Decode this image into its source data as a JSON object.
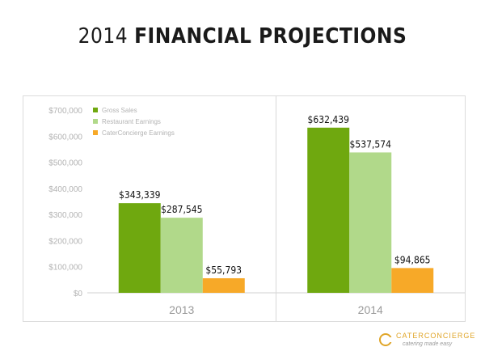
{
  "slide": {
    "title_light": "2014",
    "title_bold": "FINANCIAL PROJECTIONS"
  },
  "brand": {
    "name": "CATERCONCIERGE",
    "tagline": "catering made easy",
    "color": "#e0a528"
  },
  "chart_data": {
    "type": "bar",
    "categories": [
      "2013",
      "2014"
    ],
    "series": [
      {
        "name": "Gross Sales",
        "color": "#6fa80f",
        "values": [
          343339,
          632439
        ],
        "labels": [
          "$343,339",
          "$632,439"
        ]
      },
      {
        "name": "Restaurant Earnings",
        "color": "#b1d98a",
        "values": [
          287545,
          537574
        ],
        "labels": [
          "$287,545",
          "$537,574"
        ]
      },
      {
        "name": "CaterConcierge Earnings",
        "color": "#f7a928",
        "values": [
          55793,
          94865
        ],
        "labels": [
          "$55,793",
          "$94,865"
        ]
      }
    ],
    "ylim": [
      0,
      700000
    ],
    "yticks": [
      0,
      100000,
      200000,
      300000,
      400000,
      500000,
      600000,
      700000
    ],
    "ytick_labels": [
      "$0",
      "$100,000",
      "$200,000",
      "$300,000",
      "$400,000",
      "$500,000",
      "$600,000",
      "$700,000"
    ],
    "grid": false,
    "legend": "top-left",
    "xlabel": "",
    "ylabel": ""
  }
}
